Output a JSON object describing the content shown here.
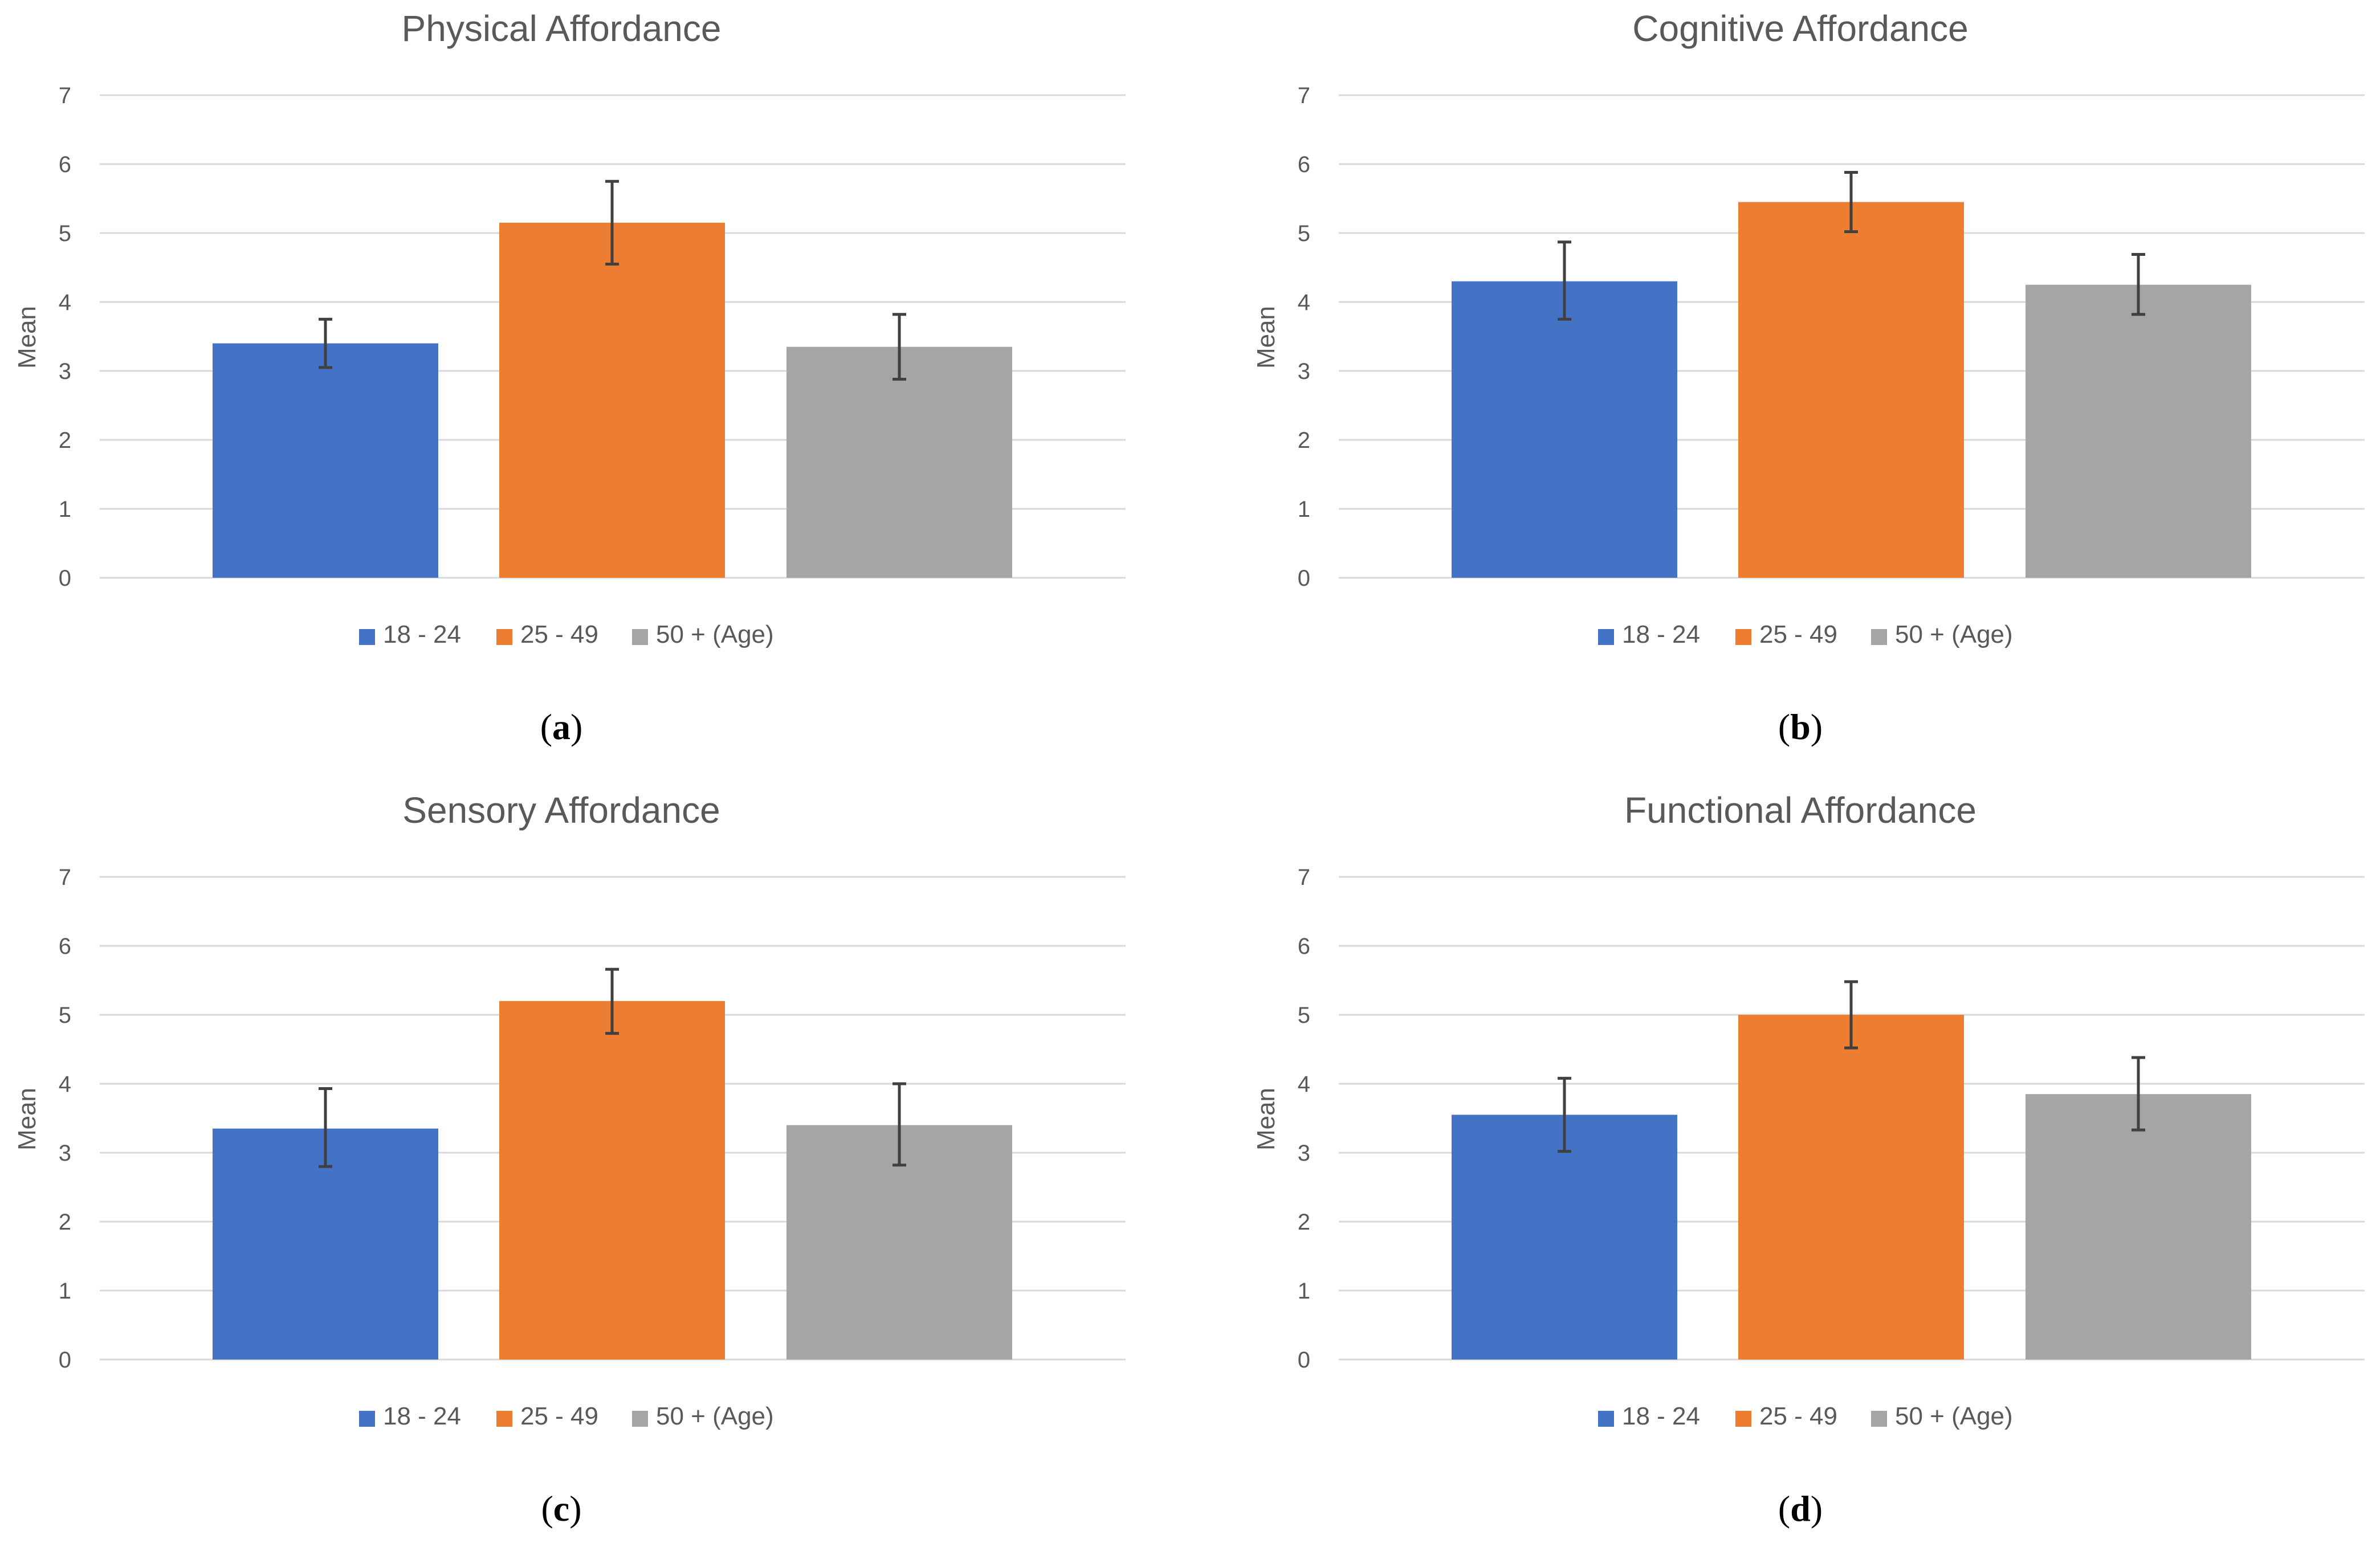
{
  "colors": {
    "18-24": "#4472C4",
    "25-49": "#ED7D31",
    "50+": "#A5A5A5",
    "grid": "#D9D9D9",
    "errorbar": "#404040"
  },
  "chart_data": [
    {
      "type": "bar",
      "title": "Physical Affordance",
      "ylabel": "Mean",
      "ylim": [
        0,
        7
      ],
      "yticks": [
        "0",
        "1",
        "2",
        "3",
        "4",
        "5",
        "6",
        "7"
      ],
      "grid": true,
      "legend_position": "bottom",
      "series": [
        {
          "name": "18 - 24",
          "value": 3.4,
          "error_low": 3.05,
          "error_high": 3.75
        },
        {
          "name": "25 - 49",
          "value": 5.15,
          "error_low": 4.55,
          "error_high": 5.75
        },
        {
          "name": "50 + (Age)",
          "value": 3.35,
          "error_low": 2.88,
          "error_high": 3.82
        }
      ],
      "caption_letter": "a"
    },
    {
      "type": "bar",
      "title": "Cognitive Affordance",
      "ylabel": "Mean",
      "ylim": [
        0,
        7
      ],
      "yticks": [
        "0",
        "1",
        "2",
        "3",
        "4",
        "5",
        "6",
        "7"
      ],
      "grid": true,
      "legend_position": "bottom",
      "series": [
        {
          "name": "18 - 24",
          "value": 4.3,
          "error_low": 3.75,
          "error_high": 4.87
        },
        {
          "name": "25 - 49",
          "value": 5.45,
          "error_low": 5.02,
          "error_high": 5.88
        },
        {
          "name": "50 + (Age)",
          "value": 4.25,
          "error_low": 3.82,
          "error_high": 4.69
        }
      ],
      "caption_letter": "b"
    },
    {
      "type": "bar",
      "title": "Sensory Affordance",
      "ylabel": "Mean",
      "ylim": [
        0,
        7
      ],
      "yticks": [
        "0",
        "1",
        "2",
        "3",
        "4",
        "5",
        "6",
        "7"
      ],
      "grid": true,
      "legend_position": "bottom",
      "series": [
        {
          "name": "18 - 24",
          "value": 3.35,
          "error_low": 2.8,
          "error_high": 3.93
        },
        {
          "name": "25 - 49",
          "value": 5.2,
          "error_low": 4.73,
          "error_high": 5.66
        },
        {
          "name": "50 + (Age)",
          "value": 3.4,
          "error_low": 2.82,
          "error_high": 4.0
        }
      ],
      "caption_letter": "c"
    },
    {
      "type": "bar",
      "title": "Functional Affordance",
      "ylabel": "Mean",
      "ylim": [
        0,
        7
      ],
      "yticks": [
        "0",
        "1",
        "2",
        "3",
        "4",
        "5",
        "6",
        "7"
      ],
      "grid": true,
      "legend_position": "bottom",
      "series": [
        {
          "name": "18 - 24",
          "value": 3.55,
          "error_low": 3.02,
          "error_high": 4.08
        },
        {
          "name": "25 - 49",
          "value": 5.0,
          "error_low": 4.52,
          "error_high": 5.48
        },
        {
          "name": "50 + (Age)",
          "value": 3.85,
          "error_low": 3.33,
          "error_high": 4.38
        }
      ],
      "caption_letter": "d"
    }
  ]
}
